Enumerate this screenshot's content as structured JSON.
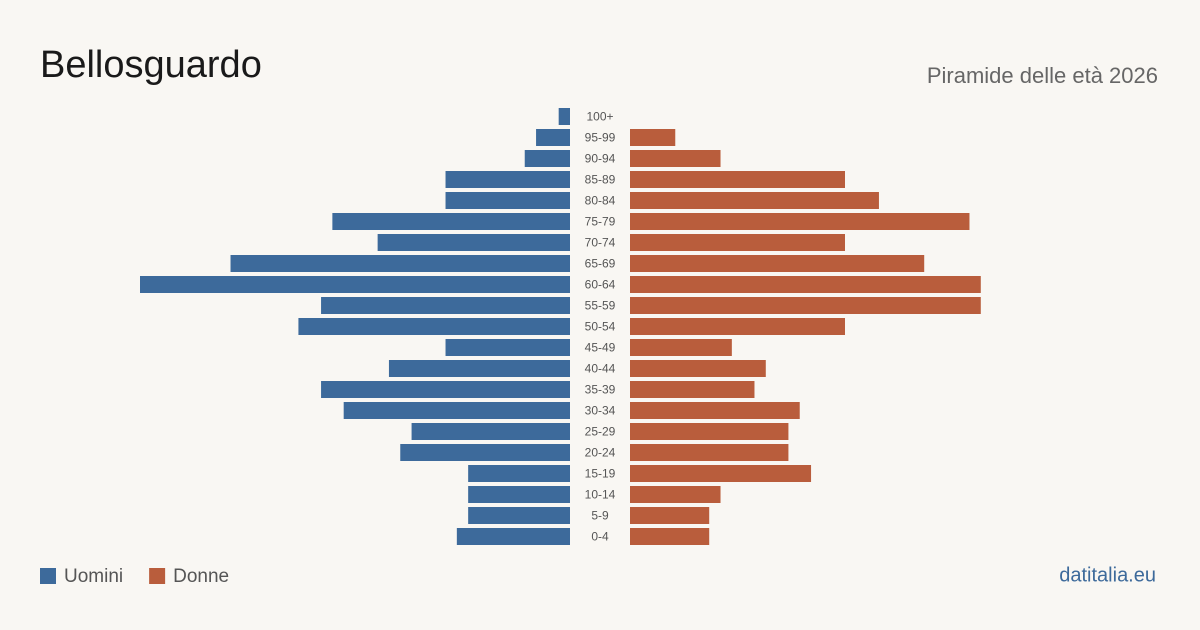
{
  "chart_data": {
    "type": "pyramid",
    "title": "Bellosguardo",
    "subtitle": "Piramide delle età 2026",
    "source": "datitalia.eu",
    "categories": [
      "100+",
      "95-99",
      "90-94",
      "85-89",
      "80-84",
      "75-79",
      "70-74",
      "65-69",
      "60-64",
      "55-59",
      "50-54",
      "45-49",
      "40-44",
      "35-39",
      "30-34",
      "25-29",
      "20-24",
      "15-19",
      "10-14",
      "5-9",
      "0-4"
    ],
    "series": [
      {
        "name": "Uomini",
        "color": "#3d6a9b",
        "values": [
          1,
          3,
          4,
          11,
          11,
          21,
          17,
          30,
          38,
          22,
          24,
          11,
          16,
          22,
          20,
          14,
          15,
          9,
          9,
          9,
          10
        ]
      },
      {
        "name": "Donne",
        "color": "#b95d3c",
        "values": [
          0,
          4,
          8,
          19,
          22,
          30,
          19,
          26,
          31,
          31,
          19,
          9,
          12,
          11,
          15,
          14,
          14,
          16,
          8,
          7,
          7
        ]
      }
    ]
  }
}
